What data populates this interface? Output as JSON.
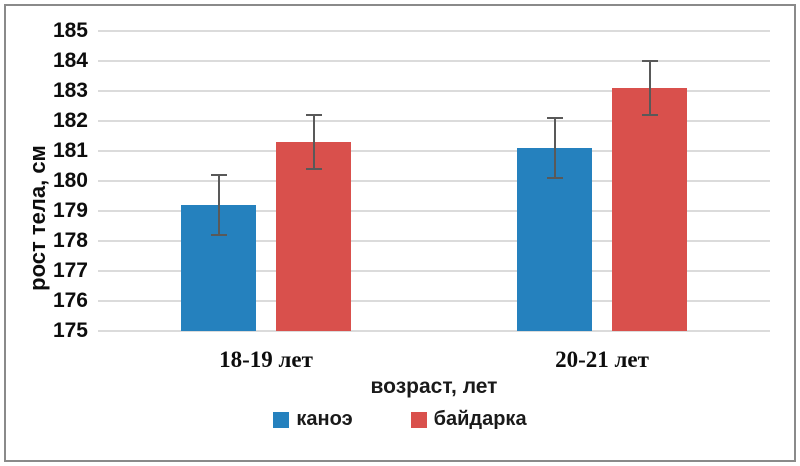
{
  "chart_data": {
    "type": "bar",
    "title": "",
    "categories": [
      "18-19 лет",
      "20-21 лет"
    ],
    "series": [
      {
        "name": "каноэ",
        "color": "#2581be",
        "values": [
          179.2,
          181.1
        ],
        "errors": [
          1.0,
          1.0
        ]
      },
      {
        "name": "байдарка",
        "color": "#d9504c",
        "values": [
          181.3,
          183.1
        ],
        "errors": [
          0.9,
          0.9
        ]
      }
    ],
    "xlabel": "возраст, лет",
    "ylabel": "рост тела, см",
    "ylim": [
      175,
      185
    ],
    "ytick_step": 1,
    "yticks": [
      175,
      176,
      177,
      178,
      179,
      180,
      181,
      182,
      183,
      184,
      185
    ],
    "grid": true,
    "legend_position": "bottom",
    "colors": {
      "gridline": "#dbdbdb",
      "error_bar": "#595959",
      "frame_border": "#8a8a8a",
      "text": "#0d0d0d",
      "background": "#ffffff"
    }
  }
}
